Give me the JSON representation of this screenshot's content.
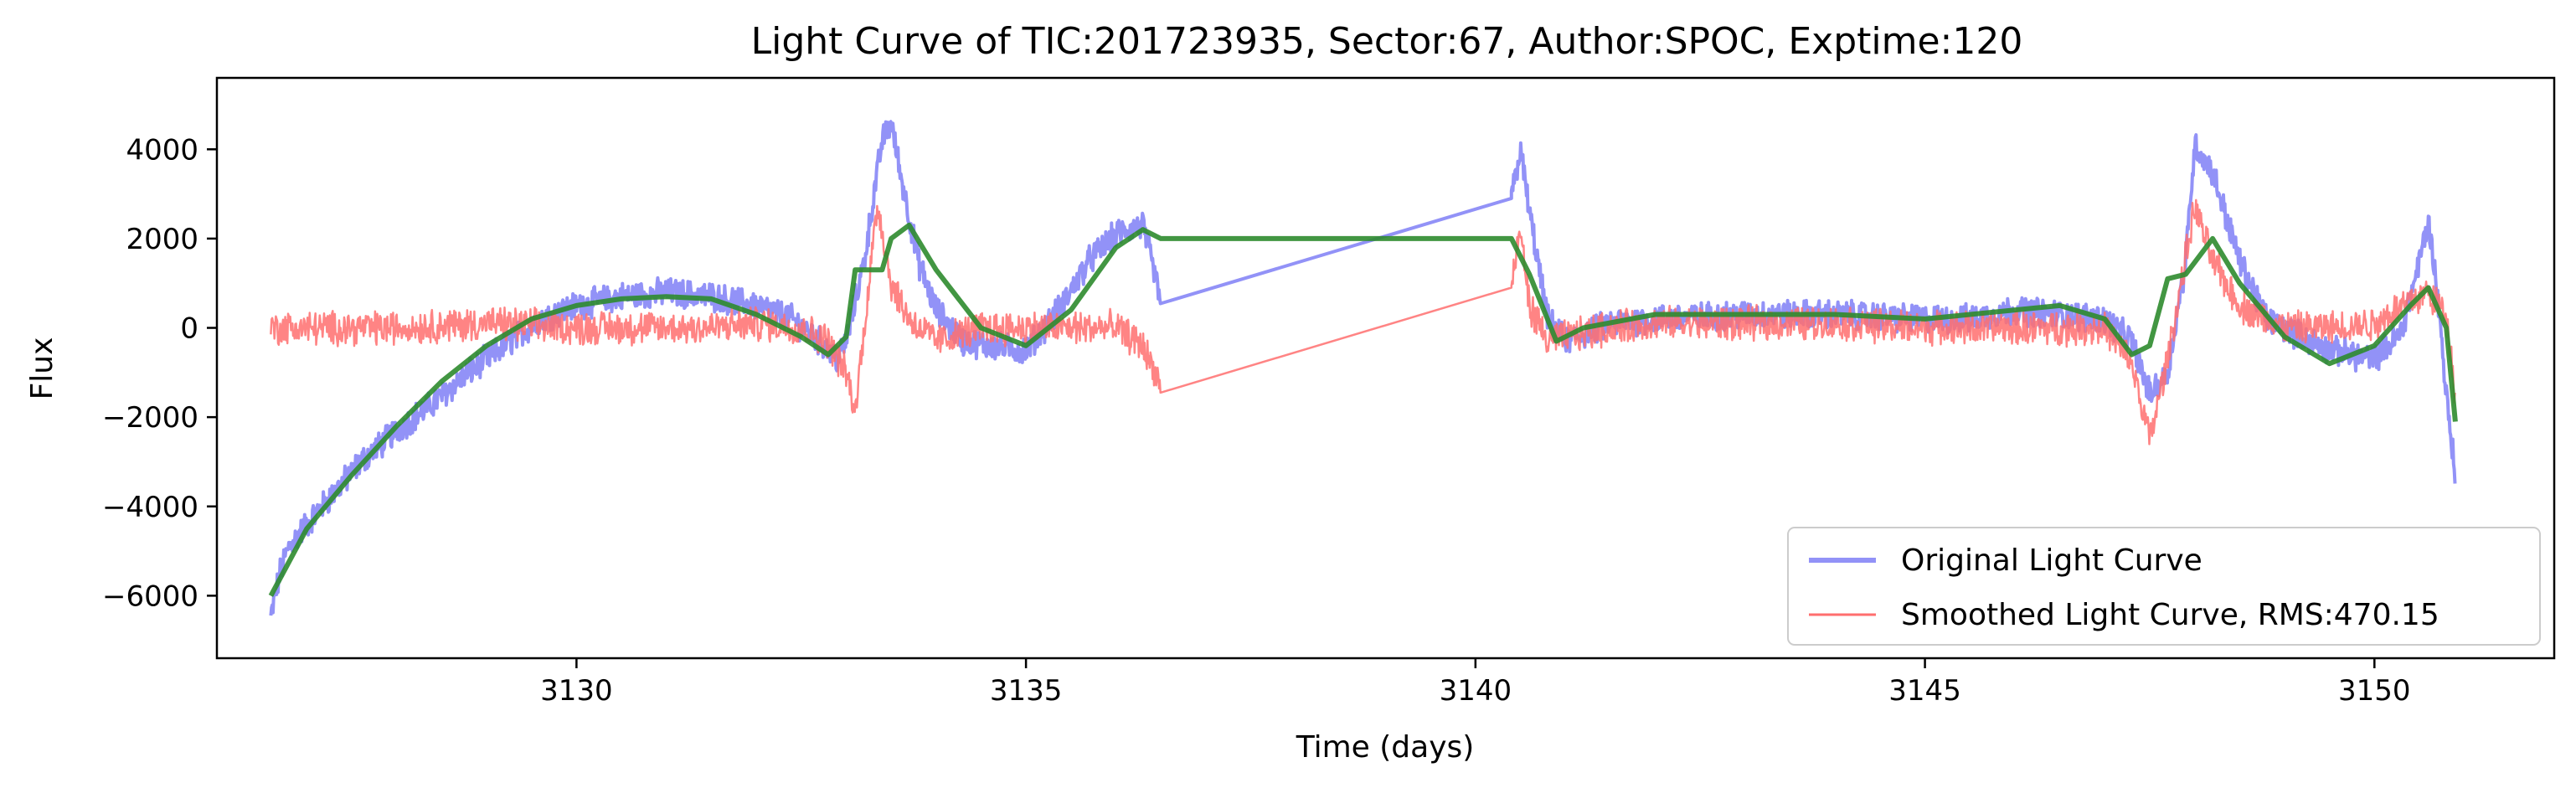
{
  "chart_data": {
    "type": "line",
    "title": "Light Curve of TIC:201723935, Sector:67, Author:SPOC, Exptime:120",
    "xlabel": "Time (days)",
    "ylabel": "Flux",
    "xlim": [
      3126,
      3152
    ],
    "ylim": [
      -7400,
      5600
    ],
    "xticks": [
      3130,
      3135,
      3140,
      3145,
      3150
    ],
    "yticks": [
      -6000,
      -4000,
      -2000,
      0,
      2000,
      4000
    ],
    "xtick_labels": [
      "3130",
      "3135",
      "3140",
      "3145",
      "3150"
    ],
    "ytick_labels": [
      "−6000",
      "−4000",
      "−2000",
      "0",
      "2000",
      "4000"
    ],
    "grid": false,
    "legend_position": "lower-right",
    "series": [
      {
        "name": "Original Light Curve",
        "color": "#7777f5",
        "noise": 280,
        "x": [
          3126.6,
          3126.7,
          3126.8,
          3127.0,
          3127.3,
          3127.6,
          3128.0,
          3128.4,
          3128.8,
          3129.2,
          3129.6,
          3130.0,
          3130.5,
          3131.0,
          3131.5,
          3132.0,
          3132.4,
          3132.7,
          3132.9,
          3133.0,
          3133.2,
          3133.4,
          3133.5,
          3133.6,
          3133.8,
          3134.0,
          3134.3,
          3134.6,
          3135.0,
          3135.4,
          3135.7,
          3136.0,
          3136.3,
          3136.5,
          3140.4,
          3140.5,
          3140.6,
          3140.8,
          3141.0,
          3141.5,
          3142.0,
          3143.0,
          3144.0,
          3145.0,
          3145.5,
          3146.0,
          3146.5,
          3147.0,
          3147.3,
          3147.5,
          3147.7,
          3147.9,
          3148.0,
          3148.2,
          3148.5,
          3148.8,
          3149.0,
          3149.5,
          3150.0,
          3150.3,
          3150.5,
          3150.6,
          3150.7,
          3150.8,
          3150.9
        ],
        "y": [
          -6500,
          -5500,
          -4900,
          -4400,
          -3700,
          -3000,
          -2300,
          -1700,
          -1000,
          -400,
          200,
          500,
          700,
          800,
          700,
          500,
          200,
          -300,
          -700,
          -300,
          1500,
          4200,
          4600,
          3500,
          1500,
          400,
          -300,
          -400,
          -500,
          500,
          1500,
          2100,
          2300,
          600,
          2900,
          4000,
          2600,
          200,
          -300,
          100,
          200,
          300,
          300,
          200,
          200,
          400,
          300,
          200,
          -300,
          -1500,
          -1000,
          1500,
          4100,
          3500,
          1500,
          200,
          0,
          -500,
          -700,
          -100,
          1500,
          2400,
          800,
          -1500,
          -3300
        ]
      },
      {
        "name": "Smoothed Light Curve, RMS:470.15",
        "color": "#ff6e6e",
        "noise": 330,
        "x": [
          3126.6,
          3127.0,
          3127.5,
          3128.0,
          3128.5,
          3129.0,
          3129.5,
          3130.0,
          3130.5,
          3131.0,
          3131.5,
          3132.0,
          3132.5,
          3132.8,
          3133.0,
          3133.1,
          3133.2,
          3133.35,
          3133.5,
          3133.7,
          3134.0,
          3134.5,
          3135.0,
          3135.5,
          3136.0,
          3136.3,
          3136.5,
          3140.4,
          3140.5,
          3140.6,
          3140.8,
          3141.0,
          3141.5,
          3142.0,
          3143.0,
          3144.0,
          3145.0,
          3146.0,
          3147.0,
          3147.3,
          3147.5,
          3147.7,
          3148.0,
          3148.2,
          3148.5,
          3149.0,
          3149.5,
          3150.0,
          3150.3,
          3150.6,
          3150.8,
          3150.9
        ],
        "y": [
          0,
          0,
          0,
          0,
          50,
          100,
          50,
          0,
          0,
          0,
          0,
          100,
          0,
          -300,
          -1000,
          -1900,
          0,
          2800,
          1000,
          200,
          -300,
          0,
          0,
          0,
          0,
          -400,
          -1300,
          900,
          2200,
          500,
          -300,
          -200,
          0,
          100,
          100,
          100,
          0,
          0,
          0,
          -800,
          -2500,
          -700,
          2700,
          1500,
          500,
          0,
          0,
          100,
          500,
          800,
          300,
          -1500
        ]
      },
      {
        "name": "",
        "color": "#2e8b2e",
        "noise": 0,
        "x": [
          3126.6,
          3127.0,
          3127.5,
          3128.0,
          3128.5,
          3129.0,
          3129.5,
          3130.0,
          3130.5,
          3131.0,
          3131.5,
          3132.0,
          3132.5,
          3132.8,
          3133.0,
          3133.1,
          3133.4,
          3133.5,
          3133.7,
          3134.0,
          3134.5,
          3135.0,
          3135.5,
          3136.0,
          3136.3,
          3136.5,
          3140.4,
          3140.6,
          3140.9,
          3141.2,
          3142.0,
          3143.0,
          3144.0,
          3145.0,
          3146.0,
          3146.5,
          3147.0,
          3147.3,
          3147.5,
          3147.7,
          3147.9,
          3148.2,
          3148.5,
          3149.0,
          3149.5,
          3150.0,
          3150.4,
          3150.6,
          3150.8,
          3150.9
        ],
        "y": [
          -6000,
          -4500,
          -3300,
          -2200,
          -1200,
          -400,
          200,
          500,
          650,
          700,
          650,
          300,
          -200,
          -600,
          -200,
          1300,
          1300,
          2000,
          2300,
          1300,
          0,
          -400,
          400,
          1800,
          2200,
          2000,
          2000,
          1200,
          -300,
          0,
          300,
          300,
          300,
          200,
          400,
          500,
          200,
          -600,
          -400,
          1100,
          1200,
          2000,
          1000,
          -200,
          -800,
          -400,
          500,
          900,
          0,
          -2100
        ]
      }
    ]
  }
}
